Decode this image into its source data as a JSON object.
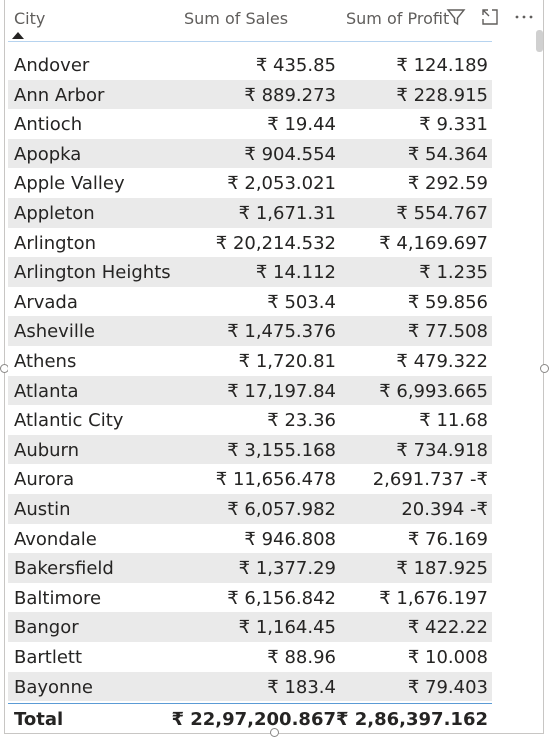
{
  "header": {
    "city": "City",
    "sales": "Sum of Sales",
    "profit": "Sum of Profit"
  },
  "icons": [
    "filter-icon",
    "focus-mode-icon",
    "more-options-icon"
  ],
  "clipped_row": {
    "city": "Andover (partial)",
    "sales": "₹ ...",
    "profit": "₹ ..."
  },
  "rows": [
    {
      "city": "Andover",
      "sales": "₹ 435.85",
      "profit": "₹ 124.189"
    },
    {
      "city": "Ann Arbor",
      "sales": "₹ 889.273",
      "profit": "₹ 228.915"
    },
    {
      "city": "Antioch",
      "sales": "₹ 19.44",
      "profit": "₹ 9.331"
    },
    {
      "city": "Apopka",
      "sales": "₹ 904.554",
      "profit": "₹ 54.364"
    },
    {
      "city": "Apple Valley",
      "sales": "₹ 2,053.021",
      "profit": "₹ 292.59"
    },
    {
      "city": "Appleton",
      "sales": "₹ 1,671.31",
      "profit": "₹ 554.767"
    },
    {
      "city": "Arlington",
      "sales": "₹ 20,214.532",
      "profit": "₹ 4,169.697"
    },
    {
      "city": "Arlington Heights",
      "sales": "₹ 14.112",
      "profit": "₹ 1.235"
    },
    {
      "city": "Arvada",
      "sales": "₹ 503.4",
      "profit": "₹ 59.856"
    },
    {
      "city": "Asheville",
      "sales": "₹ 1,475.376",
      "profit": "₹ 77.508"
    },
    {
      "city": "Athens",
      "sales": "₹ 1,720.81",
      "profit": "₹ 479.322"
    },
    {
      "city": "Atlanta",
      "sales": "₹ 17,197.84",
      "profit": "₹ 6,993.665"
    },
    {
      "city": "Atlantic City",
      "sales": "₹ 23.36",
      "profit": "₹ 11.68"
    },
    {
      "city": "Auburn",
      "sales": "₹ 3,155.168",
      "profit": "₹ 734.918"
    },
    {
      "city": "Aurora",
      "sales": "₹ 11,656.478",
      "profit": "2,691.737 -₹"
    },
    {
      "city": "Austin",
      "sales": "₹ 6,057.982",
      "profit": "20.394 -₹"
    },
    {
      "city": "Avondale",
      "sales": "₹ 946.808",
      "profit": "₹ 76.169"
    },
    {
      "city": "Bakersfield",
      "sales": "₹ 1,377.29",
      "profit": "₹ 187.925"
    },
    {
      "city": "Baltimore",
      "sales": "₹ 6,156.842",
      "profit": "₹ 1,676.197"
    },
    {
      "city": "Bangor",
      "sales": "₹ 1,164.45",
      "profit": "₹ 422.22"
    },
    {
      "city": "Bartlett",
      "sales": "₹ 88.96",
      "profit": "₹ 10.008"
    },
    {
      "city": "Bayonne",
      "sales": "₹ 183.4",
      "profit": "₹ 79.403"
    }
  ],
  "total": {
    "label": "Total",
    "sales": "₹ 22,97,200.867",
    "profit": "₹ 2,86,397.162"
  }
}
